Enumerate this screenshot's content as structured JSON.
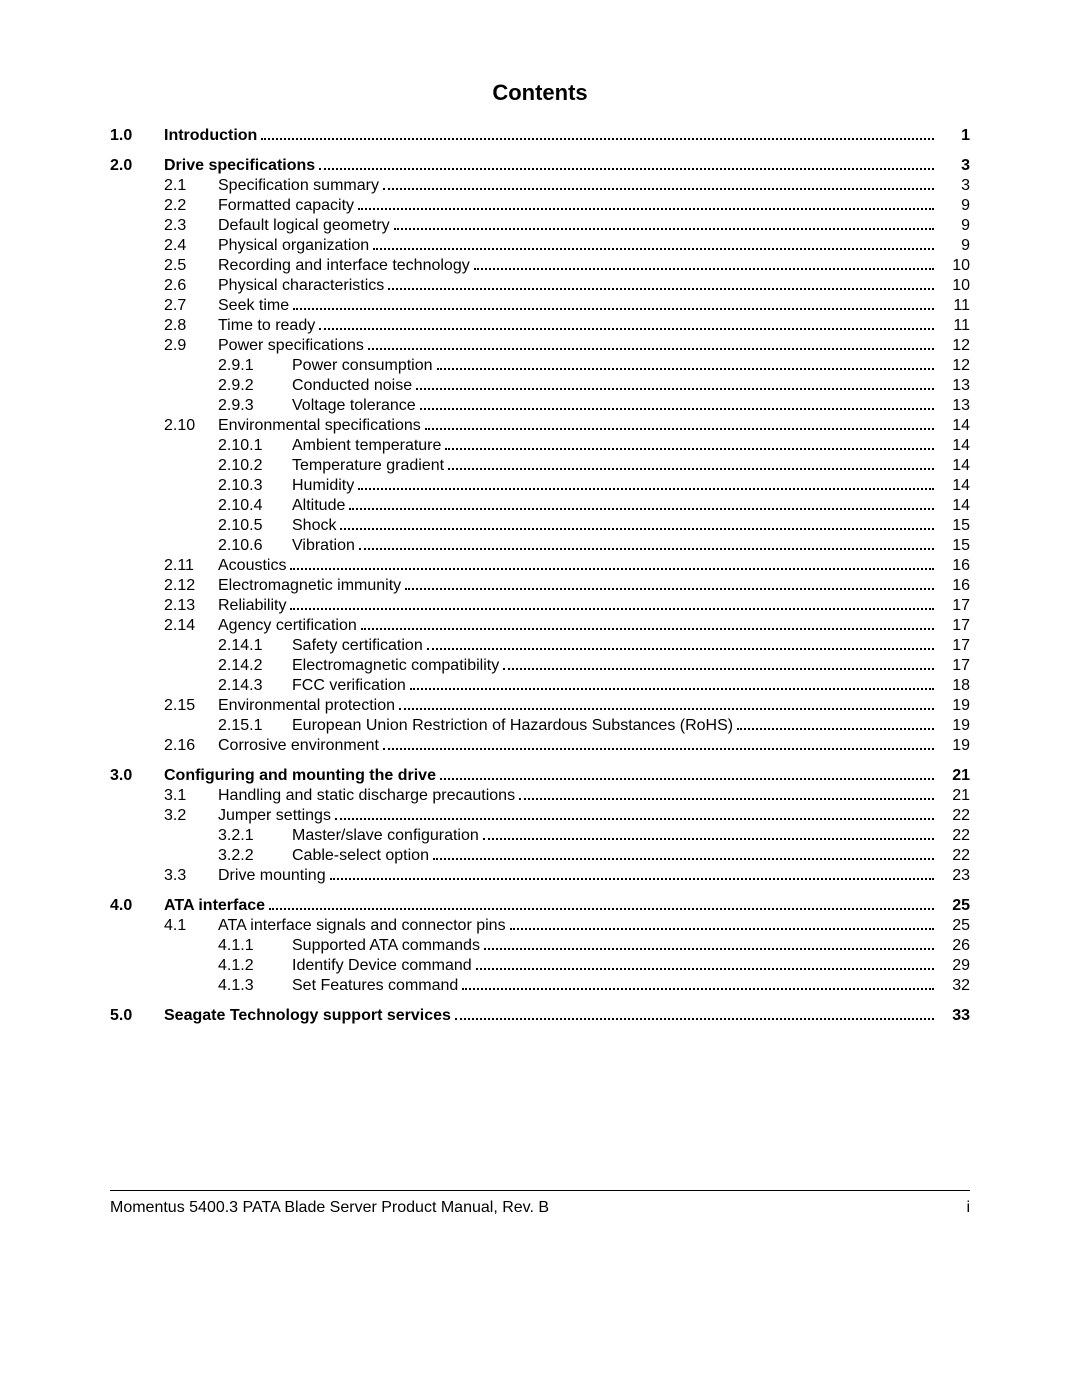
{
  "header": {
    "title": "Contents"
  },
  "footer": {
    "left": "Momentus 5400.3 PATA Blade Server Product Manual, Rev. B",
    "right": "i"
  },
  "toc": [
    {
      "level": 0,
      "chapter": "1.0",
      "title": "Introduction",
      "page": "1",
      "bold": true
    },
    {
      "level": 0,
      "chapter": "2.0",
      "title": "Drive specifications",
      "page": "3",
      "bold": true
    },
    {
      "level": 1,
      "l1": "2.1",
      "title": "Specification summary",
      "page": "3"
    },
    {
      "level": 1,
      "l1": "2.2",
      "title": "Formatted capacity",
      "page": "9"
    },
    {
      "level": 1,
      "l1": "2.3",
      "title": "Default logical geometry",
      "page": "9"
    },
    {
      "level": 1,
      "l1": "2.4",
      "title": "Physical organization",
      "page": "9"
    },
    {
      "level": 1,
      "l1": "2.5",
      "title": "Recording and interface technology",
      "page": "10"
    },
    {
      "level": 1,
      "l1": "2.6",
      "title": "Physical characteristics",
      "page": "10"
    },
    {
      "level": 1,
      "l1": "2.7",
      "title": "Seek time",
      "page": "11"
    },
    {
      "level": 1,
      "l1": "2.8",
      "title": "Time to ready",
      "page": "11"
    },
    {
      "level": 1,
      "l1": "2.9",
      "title": "Power specifications",
      "page": "12"
    },
    {
      "level": 2,
      "l2": "2.9.1",
      "title": "Power consumption",
      "page": "12"
    },
    {
      "level": 2,
      "l2": "2.9.2",
      "title": "Conducted noise",
      "page": "13"
    },
    {
      "level": 2,
      "l2": "2.9.3",
      "title": "Voltage tolerance",
      "page": "13"
    },
    {
      "level": 1,
      "l1": "2.10",
      "title": "Environmental specifications",
      "page": "14"
    },
    {
      "level": 2,
      "l2": "2.10.1",
      "title": "Ambient temperature",
      "page": "14"
    },
    {
      "level": 2,
      "l2": "2.10.2",
      "title": "Temperature gradient",
      "page": "14"
    },
    {
      "level": 2,
      "l2": "2.10.3",
      "title": "Humidity",
      "page": "14"
    },
    {
      "level": 2,
      "l2": "2.10.4",
      "title": "Altitude",
      "page": "14"
    },
    {
      "level": 2,
      "l2": "2.10.5",
      "title": "Shock",
      "page": "15"
    },
    {
      "level": 2,
      "l2": "2.10.6",
      "title": "Vibration",
      "page": "15"
    },
    {
      "level": 1,
      "l1": "2.11",
      "title": "Acoustics",
      "page": "16"
    },
    {
      "level": 1,
      "l1": "2.12",
      "title": "Electromagnetic immunity",
      "page": "16"
    },
    {
      "level": 1,
      "l1": "2.13",
      "title": "Reliability",
      "page": "17"
    },
    {
      "level": 1,
      "l1": "2.14",
      "title": "Agency certification",
      "page": "17"
    },
    {
      "level": 2,
      "l2": "2.14.1",
      "title": "Safety certification",
      "page": "17"
    },
    {
      "level": 2,
      "l2": "2.14.2",
      "title": "Electromagnetic compatibility",
      "page": "17"
    },
    {
      "level": 2,
      "l2": "2.14.3",
      "title": "FCC verification",
      "page": "18"
    },
    {
      "level": 1,
      "l1": "2.15",
      "title": "Environmental protection",
      "page": "19"
    },
    {
      "level": 2,
      "l2": "2.15.1",
      "title": "European Union Restriction of Hazardous Substances (RoHS)",
      "page": "19"
    },
    {
      "level": 1,
      "l1": "2.16",
      "title": "Corrosive environment",
      "page": "19"
    },
    {
      "level": 0,
      "chapter": "3.0",
      "title": "Configuring and mounting the drive",
      "page": "21",
      "bold": true
    },
    {
      "level": 1,
      "l1": "3.1",
      "title": "Handling and static discharge precautions",
      "page": "21"
    },
    {
      "level": 1,
      "l1": "3.2",
      "title": "Jumper settings",
      "page": "22"
    },
    {
      "level": 2,
      "l2": "3.2.1",
      "title": "Master/slave configuration",
      "page": "22"
    },
    {
      "level": 2,
      "l2": "3.2.2",
      "title": "Cable-select option",
      "page": "22"
    },
    {
      "level": 1,
      "l1": "3.3",
      "title": "Drive mounting",
      "page": "23"
    },
    {
      "level": 0,
      "chapter": "4.0",
      "title": "ATA interface",
      "page": "25",
      "bold": true
    },
    {
      "level": 1,
      "l1": "4.1",
      "title": "ATA interface signals and connector pins",
      "page": "25"
    },
    {
      "level": 2,
      "l2": "4.1.1",
      "title": "Supported ATA commands",
      "page": "26"
    },
    {
      "level": 2,
      "l2": "4.1.2",
      "title": "Identify Device command",
      "page": "29"
    },
    {
      "level": 2,
      "l2": "4.1.3",
      "title": "Set Features command",
      "page": "32"
    },
    {
      "level": 0,
      "chapter": "5.0",
      "title": "Seagate Technology support services",
      "page": "33",
      "bold": true
    }
  ]
}
